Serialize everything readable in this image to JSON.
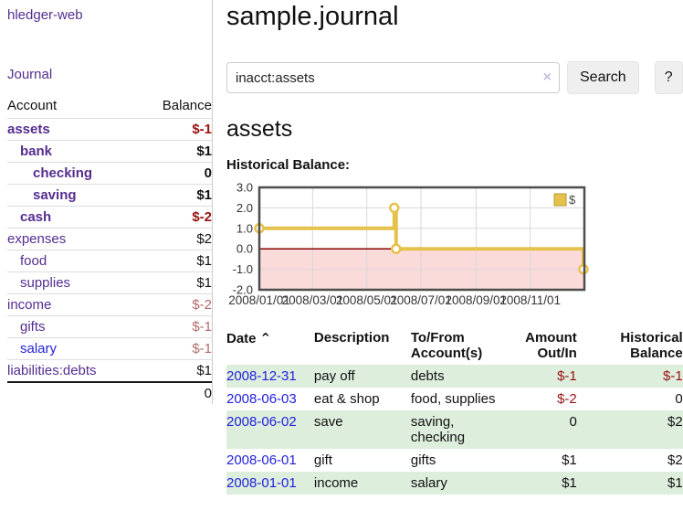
{
  "app": {
    "title": "hledger-web"
  },
  "theme": {
    "link_purple": "#552d90",
    "link_blue": "#2222dd",
    "negative_strong": "#991111",
    "negative_muted": "#b36a6a",
    "row_stripe_green": "#ddeedd",
    "chart_line_gold": "#e6c24d",
    "chart_negative_fill": "#fbdada",
    "chart_zero_line": "#8b0000"
  },
  "sidebar": {
    "journal_label": "Journal",
    "accounts_table": {
      "account_header": "Account",
      "balance_header": "Balance",
      "rows": [
        {
          "name": "assets",
          "indent": 0,
          "bold": true,
          "balance": "$-1",
          "balance_class": "neg-strong"
        },
        {
          "name": "bank",
          "indent": 1,
          "bold": true,
          "balance": "$1",
          "balance_class": ""
        },
        {
          "name": "checking",
          "indent": 2,
          "bold": true,
          "balance": "0",
          "balance_class": ""
        },
        {
          "name": "saving",
          "indent": 2,
          "bold": true,
          "balance": "$1",
          "balance_class": ""
        },
        {
          "name": "cash",
          "indent": 1,
          "bold": true,
          "balance": "$-2",
          "balance_class": "neg-strong"
        },
        {
          "name": "expenses",
          "indent": 0,
          "bold": false,
          "balance": "$2",
          "balance_class": ""
        },
        {
          "name": "food",
          "indent": 1,
          "bold": false,
          "balance": "$1",
          "balance_class": ""
        },
        {
          "name": "supplies",
          "indent": 1,
          "bold": false,
          "balance": "$1",
          "balance_class": ""
        },
        {
          "name": "income",
          "indent": 0,
          "bold": false,
          "balance": "$-2",
          "balance_class": "neg-muted"
        },
        {
          "name": "gifts",
          "indent": 1,
          "bold": false,
          "balance": "$-1",
          "balance_class": "neg-muted"
        },
        {
          "name": "salary",
          "indent": 1,
          "bold": false,
          "unvisited": true,
          "balance": "$-1",
          "balance_class": "neg-muted"
        },
        {
          "name": "liabilities:debts",
          "indent": 0,
          "bold": false,
          "balance": "$1",
          "balance_class": ""
        }
      ],
      "total": "0"
    }
  },
  "main": {
    "title": "sample.journal",
    "search": {
      "value": "inacct:assets",
      "clear_icon": "×",
      "button_label": "Search",
      "help_label": "?"
    },
    "account_heading": "assets"
  },
  "chart_data": {
    "type": "line",
    "step": true,
    "title": "Historical Balance:",
    "series": [
      {
        "name": "$",
        "color": "#e6c24d",
        "points": [
          [
            "2008-01-01",
            1
          ],
          [
            "2008-06-01",
            2
          ],
          [
            "2008-06-03",
            0
          ],
          [
            "2008-12-31",
            -1
          ]
        ]
      }
    ],
    "xrange": [
      "2008-01-01",
      "2009-01-01"
    ],
    "ylim": [
      -2.0,
      3.0
    ],
    "yticks": [
      3.0,
      2.0,
      1.0,
      0.0,
      -1.0,
      -2.0
    ],
    "xticks": [
      "2008/01/01",
      "2008/03/01",
      "2008/05/01",
      "2008/07/01",
      "2008/09/01",
      "2008/11/01"
    ],
    "grid": true,
    "legend_position": "top-right",
    "negative_region_fill": "#fbdada",
    "zero_line_color": "#8b0000"
  },
  "register": {
    "headers": {
      "date": "Date",
      "sort_icon": "⌃",
      "description": "Description",
      "accounts": "To/From Account(s)",
      "amount": "Amount Out/In",
      "balance": "Historical Balance"
    },
    "rows": [
      {
        "date": "2008-12-31",
        "description": "pay off",
        "accounts": "debts",
        "amount": "$-1",
        "balance": "$-1"
      },
      {
        "date": "2008-06-03",
        "description": "eat & shop",
        "accounts": "food, supplies",
        "amount": "$-2",
        "balance": "0"
      },
      {
        "date": "2008-06-02",
        "description": "save",
        "accounts": "saving, checking",
        "amount": "0",
        "balance": "$2"
      },
      {
        "date": "2008-06-01",
        "description": "gift",
        "accounts": "gifts",
        "amount": "$1",
        "balance": "$2"
      },
      {
        "date": "2008-01-01",
        "description": "income",
        "accounts": "salary",
        "amount": "$1",
        "balance": "$1"
      }
    ]
  }
}
